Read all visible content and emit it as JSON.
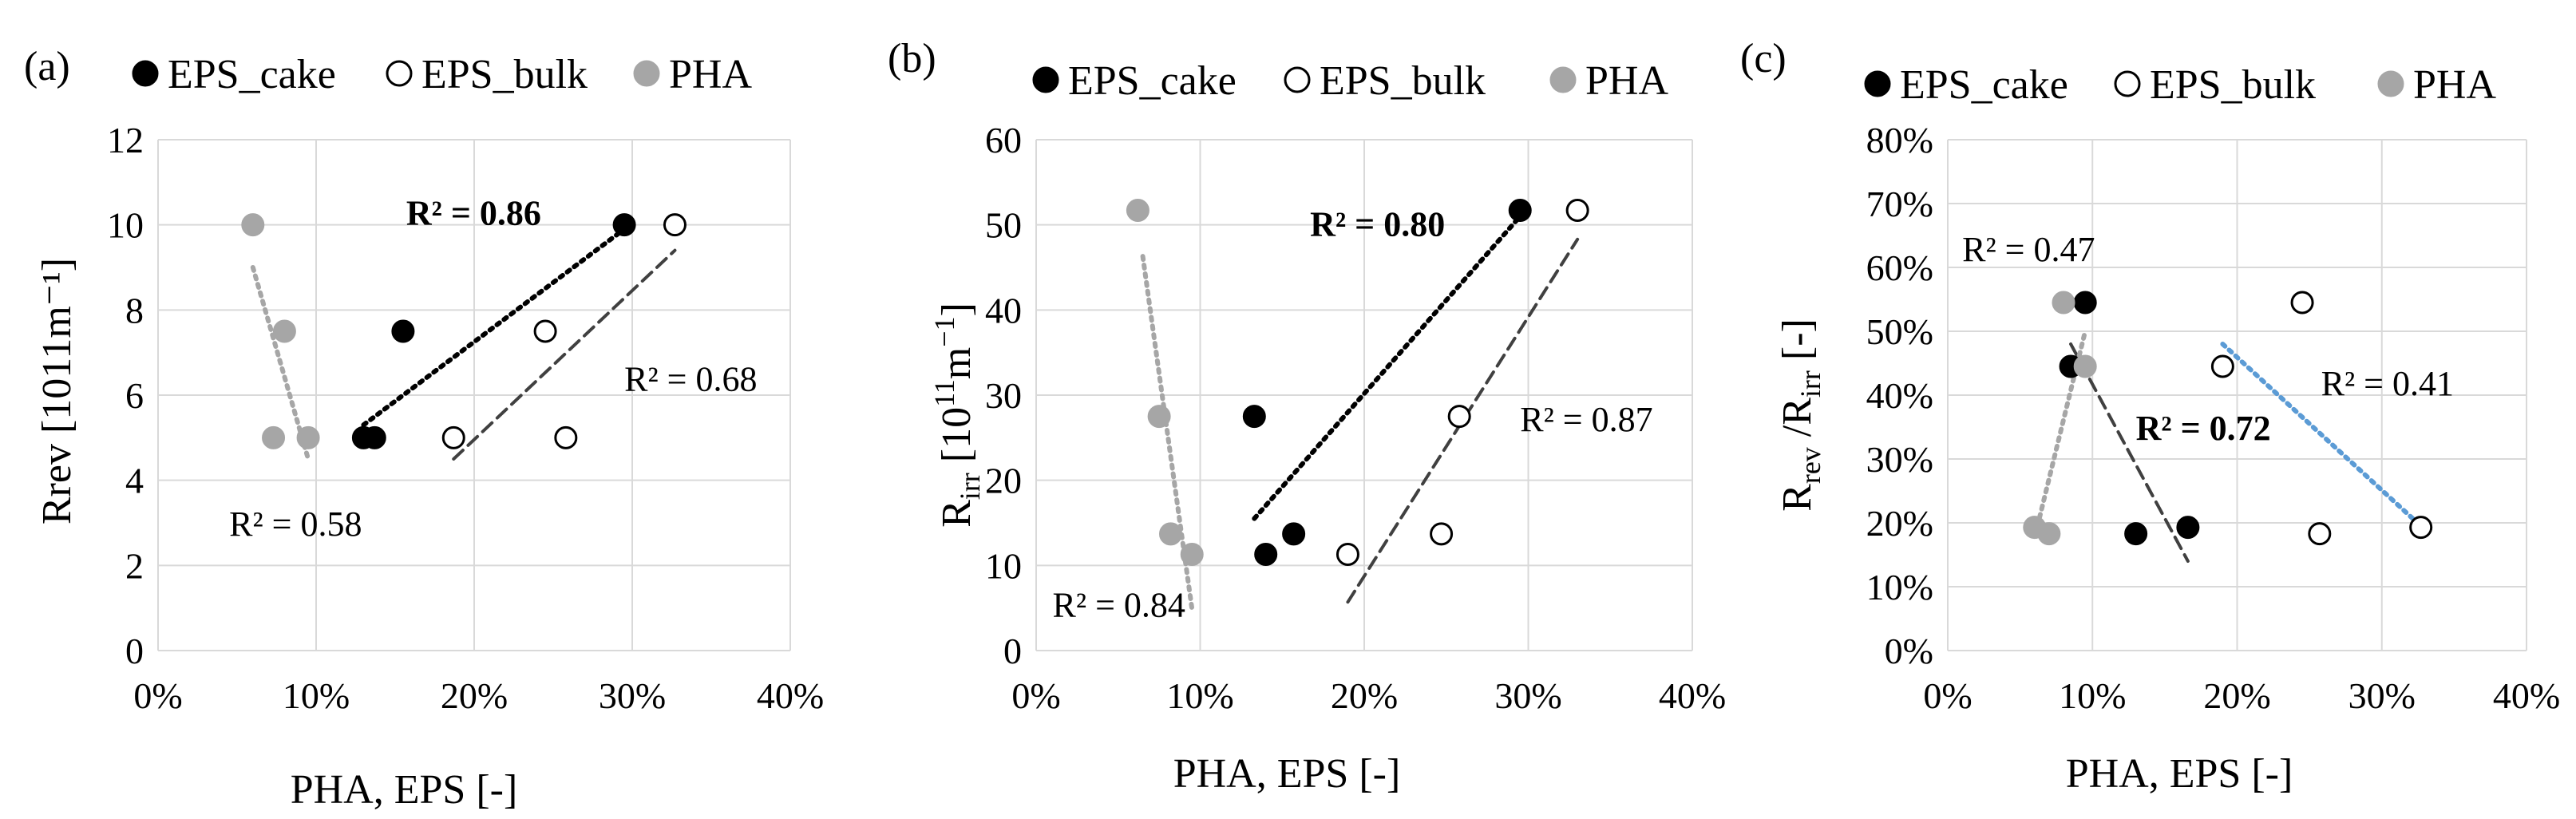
{
  "legend": [
    {
      "name": "EPS_cake",
      "marker": "filled"
    },
    {
      "name": "EPS_bulk",
      "marker": "open"
    },
    {
      "name": "PHA",
      "marker": "gray"
    }
  ],
  "colors": {
    "eps_cake": "#000000",
    "eps_bulk_fill": "#ffffff",
    "eps_bulk_stroke": "#000000",
    "pha": "#a6a6a6",
    "trend_black": "#000000",
    "trend_dark": "#404040",
    "trend_gray": "#a6a6a6",
    "trend_blue": "#5b9bd5",
    "grid": "#d9d9d9"
  },
  "chart_data": [
    {
      "type": "scatter",
      "panel_label": "(a)",
      "xlabel": "PHA, EPS [-]",
      "ylabel": "Rrev [1011m⁻¹]",
      "xlim": [
        0,
        0.4
      ],
      "ylim": [
        0,
        12
      ],
      "xticks": [
        0,
        0.1,
        0.2,
        0.3,
        0.4
      ],
      "xticklabels": [
        "0%",
        "10%",
        "20%",
        "30%",
        "40%"
      ],
      "yticks": [
        0,
        2,
        4,
        6,
        8,
        10,
        12
      ],
      "yticklabels": [
        "0",
        "2",
        "4",
        "6",
        "8",
        "10",
        "12"
      ],
      "series": [
        {
          "name": "EPS_cake",
          "style": "filled",
          "points": [
            [
              0.13,
              5.0
            ],
            [
              0.137,
              5.0
            ],
            [
              0.155,
              7.5
            ],
            [
              0.295,
              10.0
            ]
          ]
        },
        {
          "name": "EPS_bulk",
          "style": "open",
          "points": [
            [
              0.187,
              5.0
            ],
            [
              0.245,
              7.5
            ],
            [
              0.258,
              5.0
            ],
            [
              0.327,
              10.0
            ]
          ]
        },
        {
          "name": "PHA",
          "style": "gray",
          "points": [
            [
              0.06,
              10.0
            ],
            [
              0.08,
              7.5
            ],
            [
              0.073,
              5.0
            ],
            [
              0.095,
              5.0
            ]
          ]
        }
      ],
      "trendlines": [
        {
          "series": "EPS_cake",
          "style": "black-dotted",
          "from": [
            0.13,
            5.3
          ],
          "to": [
            0.295,
            9.9
          ],
          "r2": "R² = 0.86",
          "bold": true,
          "label_at": [
            0.157,
            10.0
          ]
        },
        {
          "series": "EPS_bulk",
          "style": "dark-dashed",
          "from": [
            0.187,
            4.5
          ],
          "to": [
            0.327,
            9.4
          ],
          "r2": "R² = 0.68",
          "bold": false,
          "label_at": [
            0.295,
            6.1
          ]
        },
        {
          "series": "PHA",
          "style": "gray-dotted",
          "from": [
            0.06,
            9.0
          ],
          "to": [
            0.095,
            4.5
          ],
          "r2": "R² = 0.58",
          "bold": false,
          "label_at": [
            0.045,
            2.7
          ]
        }
      ]
    },
    {
      "type": "scatter",
      "panel_label": "(b)",
      "xlabel": "PHA, EPS [-]",
      "ylabel": "R_irr [10¹¹m⁻¹]",
      "ylabel_parts": {
        "r": "R",
        "sub": "irr",
        "pre": " [10",
        "sup1": "11",
        "mid": "m",
        "sup2": "−1",
        "post": "]"
      },
      "xlim": [
        0,
        0.4
      ],
      "ylim": [
        0,
        60
      ],
      "xticks": [
        0,
        0.1,
        0.2,
        0.3,
        0.4
      ],
      "xticklabels": [
        "0%",
        "10%",
        "20%",
        "30%",
        "40%"
      ],
      "yticks": [
        0,
        10,
        20,
        30,
        40,
        50,
        60
      ],
      "yticklabels": [
        "0",
        "10",
        "20",
        "30",
        "40",
        "50",
        "60"
      ],
      "series": [
        {
          "name": "EPS_cake",
          "style": "filled",
          "points": [
            [
              0.133,
              27.5
            ],
            [
              0.14,
              11.3
            ],
            [
              0.157,
              13.7
            ],
            [
              0.295,
              51.7
            ]
          ]
        },
        {
          "name": "EPS_bulk",
          "style": "open",
          "points": [
            [
              0.19,
              11.3
            ],
            [
              0.247,
              13.7
            ],
            [
              0.258,
              27.5
            ],
            [
              0.33,
              51.7
            ]
          ]
        },
        {
          "name": "PHA",
          "style": "gray",
          "points": [
            [
              0.062,
              51.7
            ],
            [
              0.075,
              27.5
            ],
            [
              0.082,
              13.7
            ],
            [
              0.095,
              11.3
            ]
          ]
        }
      ],
      "trendlines": [
        {
          "series": "EPS_cake",
          "style": "black-dotted",
          "from": [
            0.133,
            15.5
          ],
          "to": [
            0.295,
            51.0
          ],
          "r2": "R² = 0.80",
          "bold": true,
          "label_at": [
            0.167,
            48.7
          ]
        },
        {
          "series": "EPS_bulk",
          "style": "dark-dashed",
          "from": [
            0.19,
            5.7
          ],
          "to": [
            0.33,
            48.3
          ],
          "r2": "R² = 0.87",
          "bold": false,
          "label_at": [
            0.295,
            25.8
          ]
        },
        {
          "series": "PHA",
          "style": "gray-dotted",
          "from": [
            0.065,
            46.3
          ],
          "to": [
            0.095,
            4.9
          ],
          "r2": "R² = 0.84",
          "bold": false,
          "label_at": [
            0.01,
            4.0
          ]
        }
      ]
    },
    {
      "type": "scatter",
      "panel_label": "(c)",
      "xlabel": "PHA, EPS [-]",
      "ylabel": "R_rev /R_irr [-]",
      "ylabel_parts": {
        "r1": "R",
        "sub1": "rev",
        "mid": " /R",
        "sub2": "irr",
        "post": " [-]"
      },
      "xlim": [
        0,
        0.4
      ],
      "ylim": [
        0,
        0.8
      ],
      "xticks": [
        0,
        0.1,
        0.2,
        0.3,
        0.4
      ],
      "xticklabels": [
        "0%",
        "10%",
        "20%",
        "30%",
        "40%"
      ],
      "yticks": [
        0,
        0.1,
        0.2,
        0.3,
        0.4,
        0.5,
        0.6,
        0.7,
        0.8
      ],
      "yticklabels": [
        "0%",
        "10%",
        "20%",
        "30%",
        "40%",
        "50%",
        "60%",
        "70%",
        "80%"
      ],
      "series": [
        {
          "name": "EPS_cake",
          "style": "filled",
          "points": [
            [
              0.085,
              0.445
            ],
            [
              0.095,
              0.545
            ],
            [
              0.13,
              0.183
            ],
            [
              0.166,
              0.193
            ]
          ]
        },
        {
          "name": "EPS_bulk",
          "style": "open",
          "points": [
            [
              0.19,
              0.445
            ],
            [
              0.245,
              0.545
            ],
            [
              0.257,
              0.183
            ],
            [
              0.327,
              0.193
            ]
          ]
        },
        {
          "name": "PHA",
          "style": "gray",
          "points": [
            [
              0.06,
              0.193
            ],
            [
              0.07,
              0.183
            ],
            [
              0.08,
              0.545
            ],
            [
              0.095,
              0.445
            ]
          ]
        }
      ],
      "trendlines": [
        {
          "series": "EPS_cake",
          "style": "dark-dashed",
          "from": [
            0.085,
            0.48
          ],
          "to": [
            0.166,
            0.14
          ],
          "r2": "R² = 0.72",
          "bold": true,
          "label_at": [
            0.13,
            0.33
          ]
        },
        {
          "series": "EPS_bulk",
          "style": "blue-dotted",
          "from": [
            0.19,
            0.48
          ],
          "to": [
            0.327,
            0.195
          ],
          "r2": "R² = 0.41",
          "bold": false,
          "label_at": [
            0.258,
            0.4
          ]
        },
        {
          "series": "PHA",
          "style": "gray-dotted",
          "from": [
            0.062,
            0.195
          ],
          "to": [
            0.095,
            0.5
          ],
          "r2": "R² = 0.47",
          "bold": false,
          "label_at": [
            0.01,
            0.61
          ]
        }
      ]
    }
  ]
}
